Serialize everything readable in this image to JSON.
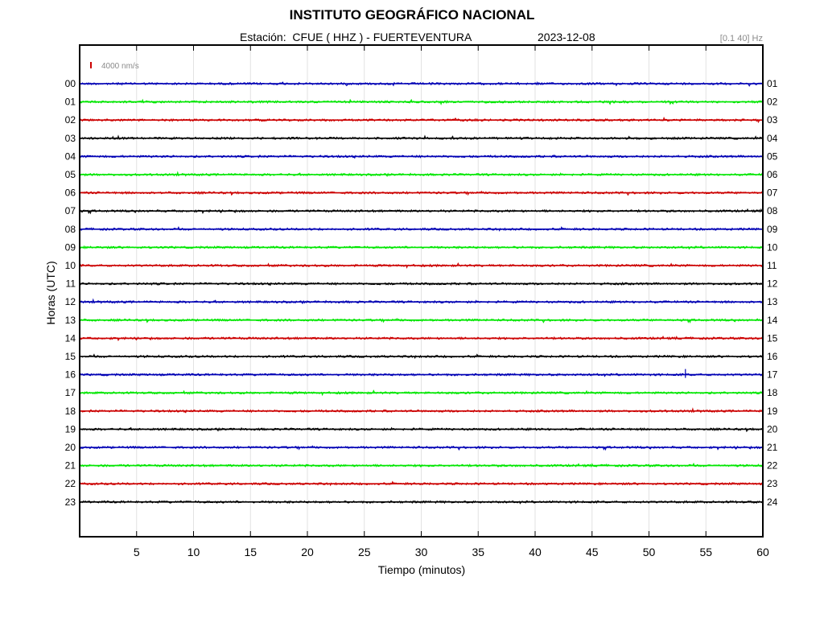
{
  "header": {
    "title": "INSTITUTO GEOGRÁFICO NACIONAL",
    "station_prefix": "Estación:",
    "station": "CFUE ( HHZ ) - FUERTEVENTURA",
    "date": "2023-12-08",
    "filter_band": "[0.1 40] Hz"
  },
  "chart_data": {
    "type": "line",
    "title": "INSTITUTO GEOGRÁFICO NACIONAL",
    "xlabel": "Tiempo (minutos)",
    "ylabel": "Horas (UTC)",
    "xlim": [
      0,
      60
    ],
    "x_ticks": [
      5,
      10,
      15,
      20,
      25,
      30,
      35,
      40,
      45,
      50,
      55,
      60
    ],
    "left_hour_labels": [
      "00",
      "01",
      "02",
      "03",
      "04",
      "05",
      "06",
      "07",
      "08",
      "09",
      "10",
      "11",
      "12",
      "13",
      "14",
      "15",
      "16",
      "17",
      "18",
      "19",
      "20",
      "21",
      "22",
      "23"
    ],
    "right_hour_labels": [
      "01",
      "02",
      "03",
      "04",
      "05",
      "06",
      "07",
      "08",
      "09",
      "10",
      "11",
      "12",
      "13",
      "14",
      "15",
      "16",
      "17",
      "18",
      "19",
      "20",
      "21",
      "22",
      "23",
      "24"
    ],
    "trace_colors": [
      "#0000b4",
      "#00e600",
      "#cc0000",
      "#000000"
    ],
    "scale_bar": {
      "label": "4000 nm/s",
      "color": "#cc0000"
    },
    "grid": true,
    "events": [
      {
        "hour": "16",
        "minute": 53.2
      }
    ]
  }
}
